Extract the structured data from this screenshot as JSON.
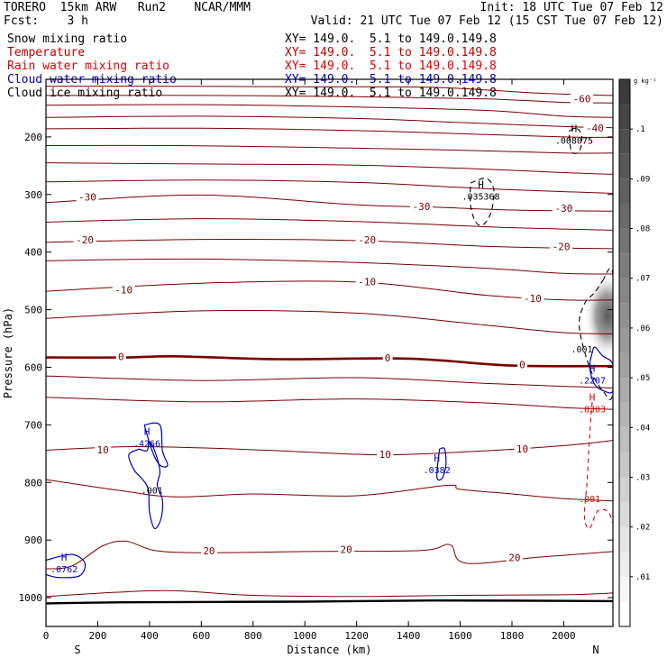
{
  "header": {
    "line1_left": "TORERO  15km ARW   Run2    NCAR/MMM",
    "line1_right": "Init: 18 UTC Tue 07 Feb 12",
    "line2_left": "Fcst:    3 h",
    "line2_right": "Valid: 21 UTC Tue 07 Feb 12 (15 CST Tue 07 Feb 12)"
  },
  "legend": [
    {
      "name": "Snow mixing ratio",
      "color": "#000000",
      "xy": "XY= 149.0.  5.1 to 149.0.149.8"
    },
    {
      "name": "Temperature",
      "color": "#c00000",
      "xy": "XY= 149.0.  5.1 to 149.0.149.8"
    },
    {
      "name": "Rain water mixing ratio",
      "color": "#e00000",
      "xy": "XY= 149.0.  5.1 to 149.0.149.8"
    },
    {
      "name": "Cloud water mixing ratio",
      "color": "#0000c0",
      "xy": "XY= 149.0.  5.1 to 149.0.149.8"
    },
    {
      "name": "Cloud ice mixing ratio",
      "color": "#000000",
      "xy": "XY= 149.0.  5.1 to 149.0.149.8"
    }
  ],
  "colors": {
    "temperature": "#7a0000",
    "cloud_water": "#0000c0",
    "rain": "#e00000",
    "snow": "#000000"
  },
  "chart_data": {
    "type": "cross-section contour",
    "xlabel": "Distance (km)",
    "ylabel": "Pressure (hPa)",
    "xlim": [
      0,
      2190
    ],
    "x_ticks": [
      0,
      200,
      400,
      600,
      800,
      1000,
      1200,
      1400,
      1600,
      1800,
      2000
    ],
    "x_tick_labels": [
      "0",
      "200",
      "400",
      "600",
      "800",
      "1000",
      "1200",
      "1400",
      "1600",
      "1800",
      "2000"
    ],
    "ylim": [
      1050,
      100
    ],
    "y_ticks": [
      200,
      300,
      400,
      500,
      600,
      700,
      800,
      900,
      1000
    ],
    "y_tick_labels": [
      "200",
      "300",
      "400",
      "500",
      "600",
      "700",
      "800",
      "900",
      "1000"
    ],
    "end_labels": {
      "left": "S",
      "right": "N"
    },
    "colorbar": {
      "unit": "g kg⁻¹",
      "range": [
        0,
        0.11
      ],
      "tick_values": [
        0.01,
        0.02,
        0.03,
        0.04,
        0.05,
        0.06,
        0.07,
        0.08,
        0.09,
        0.1
      ],
      "tick_labels": [
        ".01",
        ".02",
        ".03",
        ".04",
        ".05",
        ".06",
        ".07",
        ".08",
        ".09",
        ".1"
      ]
    },
    "temperature_isotherm_labels": [
      {
        "text": "-60",
        "x": 2070,
        "p": 135
      },
      {
        "text": "-40",
        "x": 2120,
        "p": 186
      },
      {
        "text": "-30",
        "x": 160,
        "p": 306
      },
      {
        "text": "-30",
        "x": 1450,
        "p": 322
      },
      {
        "text": "-30",
        "x": 2000,
        "p": 325
      },
      {
        "text": "-20",
        "x": 150,
        "p": 380
      },
      {
        "text": "-20",
        "x": 1240,
        "p": 380
      },
      {
        "text": "-20",
        "x": 1990,
        "p": 392
      },
      {
        "text": "-10",
        "x": 300,
        "p": 467
      },
      {
        "text": "-10",
        "x": 1240,
        "p": 453
      },
      {
        "text": "-10",
        "x": 1880,
        "p": 482
      },
      {
        "text": "0",
        "x": 290,
        "p": 583
      },
      {
        "text": "0",
        "x": 1320,
        "p": 585
      },
      {
        "text": "0",
        "x": 1840,
        "p": 597
      },
      {
        "text": "10",
        "x": 220,
        "p": 745
      },
      {
        "text": "10",
        "x": 1310,
        "p": 753
      },
      {
        "text": "10",
        "x": 1840,
        "p": 743
      },
      {
        "text": "20",
        "x": 630,
        "p": 920
      },
      {
        "text": "20",
        "x": 1160,
        "p": 918
      },
      {
        "text": "20",
        "x": 1810,
        "p": 932
      }
    ],
    "temperature_isotherms": [
      {
        "level": -60,
        "points": [
          [
            0,
            112
          ],
          [
            500,
            112
          ],
          [
            1000,
            113
          ],
          [
            1500,
            114
          ],
          [
            1900,
            124
          ],
          [
            2190,
            128
          ]
        ]
      },
      {
        "level": -55,
        "points": [
          [
            0,
            128
          ],
          [
            600,
            128
          ],
          [
            1200,
            130
          ],
          [
            1700,
            134
          ],
          [
            2000,
            140
          ],
          [
            2190,
            141
          ]
        ]
      },
      {
        "level": -50,
        "points": [
          [
            0,
            145
          ],
          [
            600,
            144
          ],
          [
            1200,
            148
          ],
          [
            1700,
            154
          ],
          [
            2000,
            164
          ],
          [
            2190,
            166
          ]
        ]
      },
      {
        "level": -45,
        "points": [
          [
            0,
            166
          ],
          [
            600,
            164
          ],
          [
            1200,
            168
          ],
          [
            1600,
            175
          ],
          [
            2000,
            182
          ],
          [
            2190,
            184
          ]
        ]
      },
      {
        "level": -40,
        "points": [
          [
            0,
            186
          ],
          [
            600,
            185
          ],
          [
            1200,
            189
          ],
          [
            1700,
            196
          ],
          [
            2000,
            200
          ],
          [
            2190,
            201
          ]
        ]
      },
      {
        "level": -38,
        "points": [
          [
            0,
            215
          ],
          [
            500,
            215
          ],
          [
            1000,
            218
          ],
          [
            1500,
            222
          ],
          [
            2000,
            228
          ],
          [
            2190,
            228
          ]
        ]
      },
      {
        "level": -35,
        "points": [
          [
            0,
            245
          ],
          [
            600,
            247
          ],
          [
            1200,
            249
          ],
          [
            1700,
            256
          ],
          [
            2000,
            262
          ],
          [
            2190,
            265
          ]
        ]
      },
      {
        "level": -32,
        "points": [
          [
            0,
            278
          ],
          [
            600,
            275
          ],
          [
            1200,
            279
          ],
          [
            1700,
            290
          ],
          [
            2000,
            295
          ],
          [
            2190,
            298
          ]
        ]
      },
      {
        "level": -30,
        "points": [
          [
            0,
            314
          ],
          [
            600,
            301
          ],
          [
            1200,
            318
          ],
          [
            1500,
            322
          ],
          [
            1800,
            327
          ],
          [
            2190,
            329
          ]
        ]
      },
      {
        "level": -25,
        "points": [
          [
            0,
            348
          ],
          [
            600,
            342
          ],
          [
            1200,
            347
          ],
          [
            1700,
            356
          ],
          [
            2000,
            360
          ],
          [
            2190,
            362
          ]
        ]
      },
      {
        "level": -20,
        "points": [
          [
            0,
            383
          ],
          [
            600,
            378
          ],
          [
            1200,
            380
          ],
          [
            1700,
            390
          ],
          [
            2000,
            393
          ],
          [
            2190,
            394
          ]
        ]
      },
      {
        "level": -15,
        "points": [
          [
            0,
            415
          ],
          [
            600,
            412
          ],
          [
            1200,
            418
          ],
          [
            1700,
            428
          ],
          [
            2000,
            437
          ],
          [
            2190,
            438
          ]
        ]
      },
      {
        "level": -10,
        "points": [
          [
            0,
            468
          ],
          [
            600,
            454
          ],
          [
            1200,
            452
          ],
          [
            1700,
            475
          ],
          [
            2000,
            483
          ],
          [
            2190,
            483
          ]
        ]
      },
      {
        "level": -5,
        "points": [
          [
            0,
            515
          ],
          [
            600,
            502
          ],
          [
            1200,
            506
          ],
          [
            1700,
            527
          ],
          [
            2000,
            540
          ],
          [
            2190,
            542
          ]
        ]
      },
      {
        "level": 0,
        "points": [
          [
            0,
            583
          ],
          [
            300,
            583
          ],
          [
            500,
            581
          ],
          [
            900,
            586
          ],
          [
            1400,
            585
          ],
          [
            1800,
            597
          ],
          [
            2190,
            598
          ]
        ]
      },
      {
        "level": 3,
        "points": [
          [
            0,
            615
          ],
          [
            600,
            623
          ],
          [
            1200,
            618
          ],
          [
            1700,
            628
          ],
          [
            2000,
            633
          ],
          [
            2190,
            636
          ]
        ]
      },
      {
        "level": 5,
        "points": [
          [
            0,
            652
          ],
          [
            600,
            660
          ],
          [
            1200,
            655
          ],
          [
            1700,
            662
          ],
          [
            2000,
            670
          ],
          [
            2190,
            673
          ]
        ]
      },
      {
        "level": 10,
        "points": [
          [
            0,
            744
          ],
          [
            300,
            738
          ],
          [
            600,
            740
          ],
          [
            900,
            745
          ],
          [
            1300,
            752
          ],
          [
            1700,
            745
          ],
          [
            2000,
            736
          ],
          [
            2190,
            727
          ]
        ]
      },
      {
        "level": 15,
        "points": [
          [
            0,
            795
          ],
          [
            300,
            815
          ],
          [
            500,
            825
          ],
          [
            800,
            820
          ],
          [
            1200,
            823
          ],
          [
            1550,
            805
          ],
          [
            1600,
            812
          ],
          [
            1800,
            820
          ],
          [
            2000,
            828
          ],
          [
            2190,
            832
          ]
        ]
      },
      {
        "level": 20,
        "points": [
          [
            0,
            950
          ],
          [
            100,
            945
          ],
          [
            220,
            910
          ],
          [
            310,
            902
          ],
          [
            420,
            918
          ],
          [
            600,
            922
          ],
          [
            1000,
            920
          ],
          [
            1450,
            918
          ],
          [
            1560,
            908
          ],
          [
            1620,
            940
          ],
          [
            1900,
            930
          ],
          [
            2190,
            920
          ]
        ]
      },
      {
        "level": 25,
        "points": [
          [
            0,
            998
          ],
          [
            300,
            990
          ],
          [
            500,
            988
          ],
          [
            800,
            996
          ],
          [
            1200,
            998
          ],
          [
            1600,
            996
          ],
          [
            2000,
            995
          ],
          [
            2190,
            992
          ]
        ]
      }
    ],
    "ground_surface_p": [
      [
        0,
        1010
      ],
      [
        300,
        1008
      ],
      [
        1000,
        1007
      ],
      [
        1500,
        1005
      ],
      [
        2190,
        1006
      ]
    ],
    "cloud_water_maxima": [
      {
        "marker": "H",
        "value": ".4266",
        "x": 390,
        "p": 727
      },
      {
        "marker": "H",
        "value": ".0382",
        "x": 1510,
        "p": 773
      },
      {
        "marker": "H",
        "value": ".0762",
        "x": 70,
        "p": 945
      },
      {
        "marker": "H",
        "value": ".2207",
        "x": 2110,
        "p": 617
      }
    ],
    "cloud_water_contour_labels": [
      {
        "text": ".001",
        "x": 410,
        "p": 813
      },
      {
        "text": ".001",
        "x": 2070,
        "p": 568
      }
    ],
    "rain_maxima": [
      {
        "marker": "H",
        "value": ".0303",
        "x": 2110,
        "p": 667
      },
      {
        "value": ".001",
        "x": 2100,
        "p": 823
      }
    ],
    "snow_maxima": [
      {
        "marker": "H",
        "value": ".035368",
        "x": 1680,
        "p": 298
      },
      {
        "marker": "H",
        "value": ".008075",
        "x": 2040,
        "p": 201
      }
    ]
  }
}
